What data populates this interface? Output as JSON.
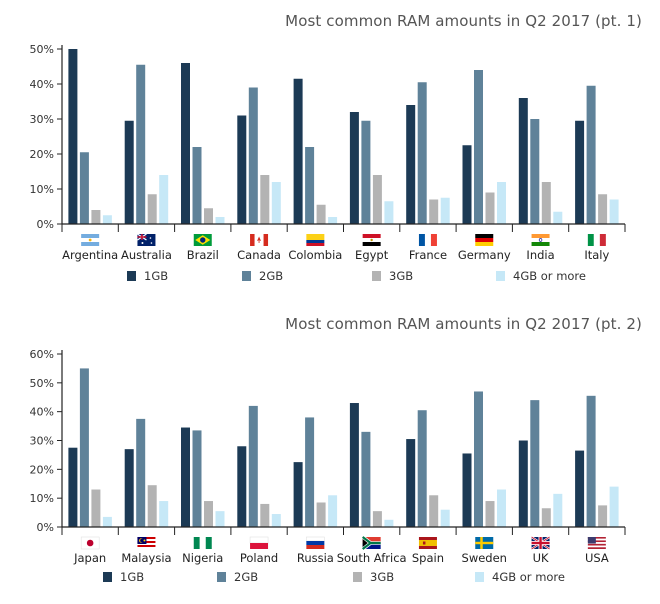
{
  "charts": [
    {
      "title": "Most common RAM amounts in Q2 2017 (pt. 1)",
      "legend": [
        "1GB",
        "2GB",
        "3GB",
        "4GB or more"
      ],
      "flag_icons": [
        "argentina-flag-icon",
        "australia-flag-icon",
        "brazil-flag-icon",
        "canada-flag-icon",
        "colombia-flag-icon",
        "egypt-flag-icon",
        "france-flag-icon",
        "germany-flag-icon",
        "india-flag-icon",
        "italy-flag-icon"
      ]
    },
    {
      "title": "Most common RAM amounts in Q2 2017 (pt. 2)",
      "legend": [
        "1GB",
        "2GB",
        "3GB",
        "4GB or more"
      ],
      "flag_icons": [
        "japan-flag-icon",
        "malaysia-flag-icon",
        "nigeria-flag-icon",
        "poland-flag-icon",
        "russia-flag-icon",
        "south-africa-flag-icon",
        "spain-flag-icon",
        "sweden-flag-icon",
        "uk-flag-icon",
        "usa-flag-icon"
      ]
    }
  ],
  "colors": {
    "1GB": "#1c3a55",
    "2GB": "#5f8299",
    "3GB": "#b3b3b3",
    "4GB or more": "#c6e8f7",
    "axis": "#222222"
  },
  "chart_data": [
    {
      "type": "bar",
      "title": "Most common RAM amounts in Q2 2017 (pt. 1)",
      "categories": [
        "Argentina",
        "Australia",
        "Brazil",
        "Canada",
        "Colombia",
        "Egypt",
        "France",
        "Germany",
        "India",
        "Italy"
      ],
      "series": [
        {
          "name": "1GB",
          "values": [
            50,
            29.5,
            46,
            31,
            41.5,
            32,
            34,
            22.5,
            36,
            29.5
          ]
        },
        {
          "name": "2GB",
          "values": [
            20.5,
            45.5,
            22,
            39,
            22,
            29.5,
            40.5,
            44,
            30,
            39.5
          ]
        },
        {
          "name": "3GB",
          "values": [
            4,
            8.5,
            4.5,
            14,
            5.5,
            14,
            7,
            9,
            12,
            8.5
          ]
        },
        {
          "name": "4GB or more",
          "values": [
            2.5,
            14,
            2,
            12,
            2,
            6.5,
            7.5,
            12,
            3.5,
            7
          ]
        }
      ],
      "yticks": [
        "0%",
        "10%",
        "20%",
        "30%",
        "40%",
        "50%"
      ],
      "ylim": [
        0,
        50
      ],
      "xlabel": "",
      "ylabel": "",
      "grid": false,
      "legend_position": "bottom"
    },
    {
      "type": "bar",
      "title": "Most common RAM amounts in Q2 2017 (pt. 2)",
      "categories": [
        "Japan",
        "Malaysia",
        "Nigeria",
        "Poland",
        "Russia",
        "South Africa",
        "Spain",
        "Sweden",
        "UK",
        "USA"
      ],
      "series": [
        {
          "name": "1GB",
          "values": [
            27.5,
            27,
            34.5,
            28,
            22.5,
            43,
            30.5,
            25.5,
            30,
            26.5
          ]
        },
        {
          "name": "2GB",
          "values": [
            55,
            37.5,
            33.5,
            42,
            38,
            33,
            40.5,
            47,
            44,
            45.5
          ]
        },
        {
          "name": "3GB",
          "values": [
            13,
            14.5,
            9,
            8,
            8.5,
            5.5,
            11,
            9,
            6.5,
            7.5
          ]
        },
        {
          "name": "4GB or more",
          "values": [
            3.5,
            9,
            5.5,
            4.5,
            11,
            2.5,
            6,
            13,
            11.5,
            14
          ]
        }
      ],
      "yticks": [
        "0%",
        "10%",
        "20%",
        "30%",
        "40%",
        "50%",
        "60%"
      ],
      "ylim": [
        0,
        60
      ],
      "xlabel": "",
      "ylabel": "",
      "grid": false,
      "legend_position": "bottom"
    }
  ]
}
